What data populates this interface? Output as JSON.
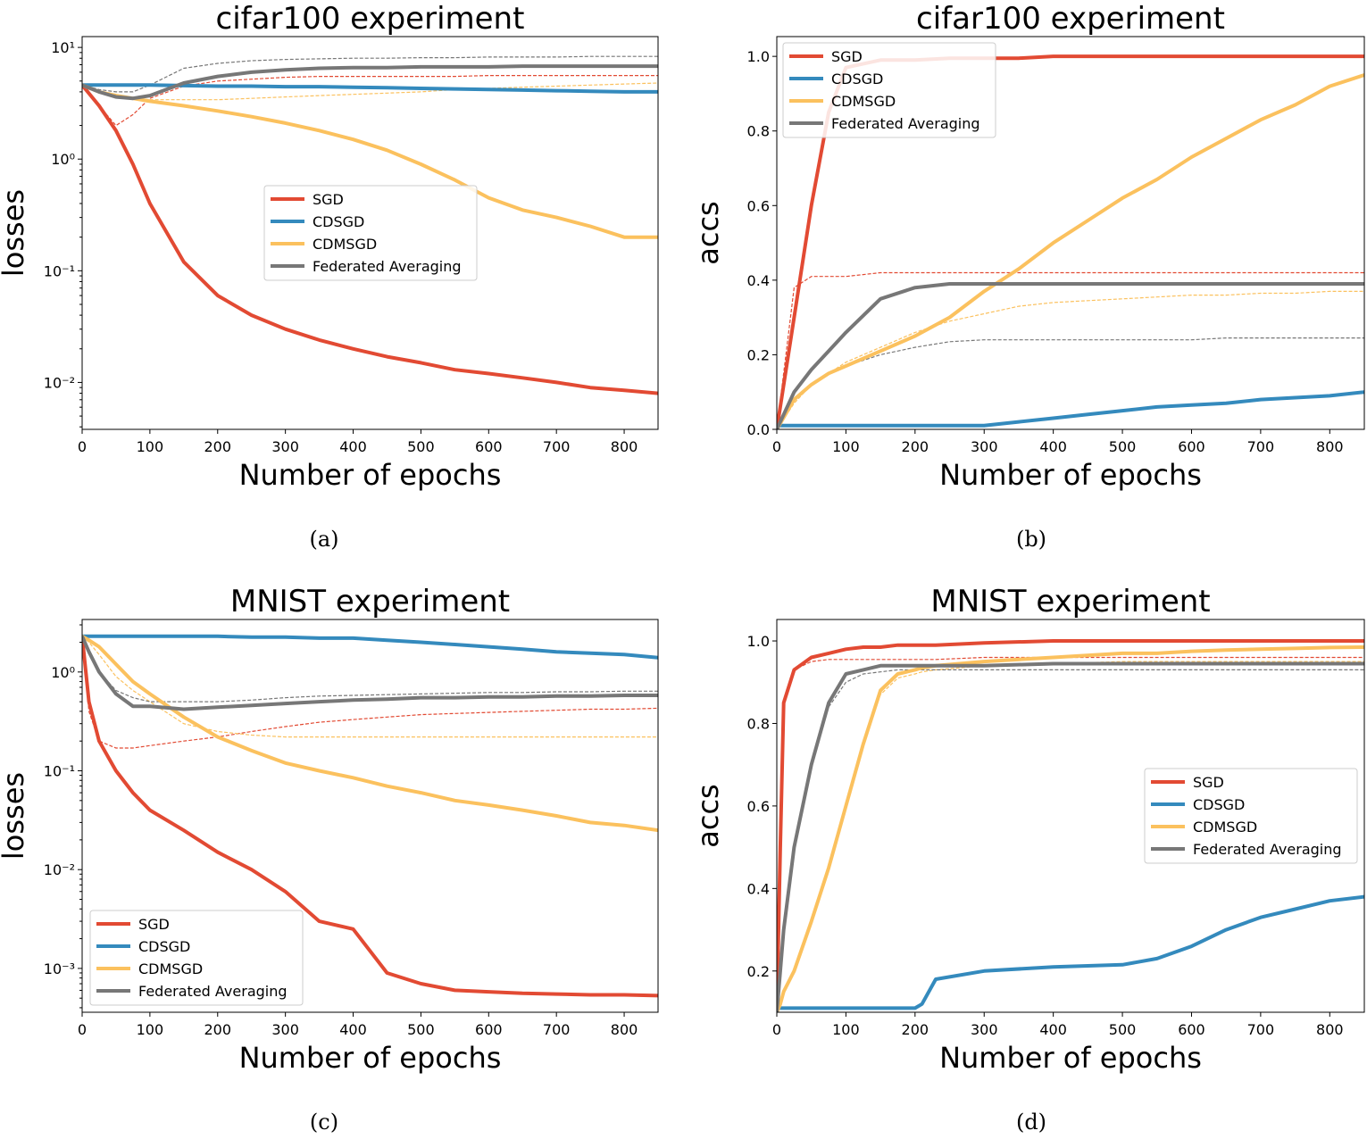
{
  "colors": {
    "SGD": "#e24a33",
    "CDSGD": "#348abd",
    "CDMSGD": "#fbc15e",
    "Federated Averaging": "#777777"
  },
  "chart_data": [
    {
      "id": "a",
      "caption": "(a)",
      "type": "line",
      "title": "cifar100 experiment",
      "xlabel": "Number of epochs",
      "ylabel": "losses",
      "yscale": "log",
      "xlim": [
        0,
        850
      ],
      "ylim": [
        0.0038,
        12.5
      ],
      "legend": "center",
      "xticks": [
        0,
        100,
        200,
        300,
        400,
        500,
        600,
        700,
        800
      ],
      "yticks": [
        {
          "v": 10,
          "label": "10¹"
        },
        {
          "v": 1,
          "label": "10⁰"
        },
        {
          "v": 0.1,
          "label": "10⁻¹"
        },
        {
          "v": 0.01,
          "label": "10⁻²"
        }
      ],
      "x": [
        0,
        25,
        50,
        75,
        100,
        150,
        200,
        250,
        300,
        350,
        400,
        450,
        500,
        550,
        600,
        650,
        700,
        750,
        800,
        850
      ],
      "series": [
        {
          "name": "SGD",
          "values": [
            4.6,
            3.0,
            1.8,
            0.9,
            0.4,
            0.12,
            0.06,
            0.04,
            0.03,
            0.024,
            0.02,
            0.017,
            0.015,
            0.013,
            0.012,
            0.011,
            0.01,
            0.009,
            0.0085,
            0.008
          ]
        },
        {
          "name": "CDSGD",
          "values": [
            4.6,
            4.6,
            4.6,
            4.6,
            4.6,
            4.55,
            4.5,
            4.5,
            4.45,
            4.45,
            4.4,
            4.35,
            4.3,
            4.25,
            4.2,
            4.15,
            4.1,
            4.05,
            4.0,
            4.0
          ]
        },
        {
          "name": "CDMSGD",
          "values": [
            4.6,
            4.0,
            3.7,
            3.5,
            3.3,
            3.0,
            2.7,
            2.4,
            2.1,
            1.8,
            1.5,
            1.2,
            0.9,
            0.65,
            0.45,
            0.35,
            0.3,
            0.25,
            0.2,
            0.2
          ]
        },
        {
          "name": "Federated Averaging",
          "values": [
            4.6,
            4.0,
            3.6,
            3.5,
            3.7,
            4.8,
            5.5,
            6.0,
            6.3,
            6.5,
            6.6,
            6.6,
            6.7,
            6.7,
            6.7,
            6.8,
            6.8,
            6.8,
            6.8,
            6.8
          ]
        }
      ],
      "dashed": [
        {
          "name": "SGD",
          "values": [
            4.6,
            3.0,
            2.0,
            2.5,
            3.5,
            4.5,
            5.0,
            5.2,
            5.4,
            5.5,
            5.5,
            5.5,
            5.5,
            5.5,
            5.6,
            5.6,
            5.6,
            5.6,
            5.6,
            5.6
          ]
        },
        {
          "name": "CDMSGD",
          "values": [
            4.6,
            4.0,
            3.6,
            3.5,
            3.4,
            3.4,
            3.4,
            3.5,
            3.6,
            3.7,
            3.8,
            3.9,
            4.0,
            4.2,
            4.3,
            4.4,
            4.5,
            4.6,
            4.7,
            4.8
          ]
        },
        {
          "name": "Federated Averaging",
          "values": [
            4.6,
            4.2,
            4.0,
            4.0,
            4.6,
            6.5,
            7.2,
            7.6,
            7.8,
            7.9,
            8.0,
            8.0,
            8.1,
            8.1,
            8.2,
            8.2,
            8.2,
            8.3,
            8.3,
            8.3
          ]
        }
      ]
    },
    {
      "id": "b",
      "caption": "(b)",
      "type": "line",
      "title": "cifar100 experiment",
      "xlabel": "Number of epochs",
      "ylabel": "accs",
      "yscale": "linear",
      "xlim": [
        0,
        850
      ],
      "ylim": [
        0,
        1.053
      ],
      "legend": "upper-left",
      "xticks": [
        0,
        100,
        200,
        300,
        400,
        500,
        600,
        700,
        800
      ],
      "yticks": [
        {
          "v": 0,
          "label": "0.0"
        },
        {
          "v": 0.2,
          "label": "0.2"
        },
        {
          "v": 0.4,
          "label": "0.4"
        },
        {
          "v": 0.6,
          "label": "0.6"
        },
        {
          "v": 0.8,
          "label": "0.8"
        },
        {
          "v": 1,
          "label": "1.0"
        }
      ],
      "x": [
        0,
        25,
        50,
        75,
        100,
        150,
        200,
        250,
        300,
        350,
        400,
        450,
        500,
        550,
        600,
        650,
        700,
        750,
        800,
        850
      ],
      "series": [
        {
          "name": "SGD",
          "values": [
            0,
            0.3,
            0.6,
            0.85,
            0.97,
            0.99,
            0.99,
            0.995,
            0.995,
            0.995,
            1,
            1,
            1,
            1,
            1,
            1,
            1,
            1,
            1,
            1
          ]
        },
        {
          "name": "CDSGD",
          "values": [
            0.01,
            0.01,
            0.01,
            0.01,
            0.01,
            0.01,
            0.01,
            0.01,
            0.01,
            0.02,
            0.03,
            0.04,
            0.05,
            0.06,
            0.065,
            0.07,
            0.08,
            0.085,
            0.09,
            0.1
          ]
        },
        {
          "name": "CDMSGD",
          "values": [
            0,
            0.08,
            0.12,
            0.15,
            0.17,
            0.21,
            0.25,
            0.3,
            0.37,
            0.43,
            0.5,
            0.56,
            0.62,
            0.67,
            0.73,
            0.78,
            0.83,
            0.87,
            0.92,
            0.95
          ]
        },
        {
          "name": "Federated Averaging",
          "values": [
            0,
            0.1,
            0.16,
            0.21,
            0.26,
            0.35,
            0.38,
            0.39,
            0.39,
            0.39,
            0.39,
            0.39,
            0.39,
            0.39,
            0.39,
            0.39,
            0.39,
            0.39,
            0.39,
            0.39
          ]
        }
      ],
      "dashed": [
        {
          "name": "SGD",
          "values": [
            0,
            0.38,
            0.41,
            0.41,
            0.41,
            0.42,
            0.42,
            0.42,
            0.42,
            0.42,
            0.42,
            0.42,
            0.42,
            0.42,
            0.42,
            0.42,
            0.42,
            0.42,
            0.42,
            0.42
          ]
        },
        {
          "name": "CDMSGD",
          "values": [
            0,
            0.07,
            0.12,
            0.15,
            0.18,
            0.22,
            0.26,
            0.29,
            0.31,
            0.33,
            0.34,
            0.345,
            0.35,
            0.355,
            0.36,
            0.36,
            0.365,
            0.365,
            0.37,
            0.37
          ]
        },
        {
          "name": "Federated Averaging",
          "values": [
            0,
            0.08,
            0.12,
            0.15,
            0.17,
            0.2,
            0.22,
            0.235,
            0.24,
            0.24,
            0.24,
            0.24,
            0.24,
            0.24,
            0.24,
            0.245,
            0.245,
            0.245,
            0.245,
            0.245
          ]
        }
      ]
    },
    {
      "id": "c",
      "caption": "(c)",
      "type": "line",
      "title": "MNIST experiment",
      "xlabel": "Number of epochs",
      "ylabel": "losses",
      "yscale": "log",
      "xlim": [
        0,
        850
      ],
      "ylim": [
        0.00036,
        3.4
      ],
      "legend": "lower-left",
      "xticks": [
        0,
        100,
        200,
        300,
        400,
        500,
        600,
        700,
        800
      ],
      "yticks": [
        {
          "v": 1,
          "label": "10⁰"
        },
        {
          "v": 0.1,
          "label": "10⁻¹"
        },
        {
          "v": 0.01,
          "label": "10⁻²"
        },
        {
          "v": 0.001,
          "label": "10⁻³"
        }
      ],
      "x": [
        0,
        10,
        25,
        50,
        75,
        100,
        150,
        200,
        250,
        300,
        350,
        400,
        450,
        500,
        550,
        600,
        650,
        700,
        750,
        800,
        850
      ],
      "series": [
        {
          "name": "SGD",
          "values": [
            2.3,
            0.5,
            0.2,
            0.1,
            0.06,
            0.04,
            0.025,
            0.015,
            0.01,
            0.006,
            0.003,
            0.0025,
            0.0009,
            0.0007,
            0.0006,
            0.00058,
            0.00056,
            0.00055,
            0.00054,
            0.00054,
            0.00053
          ]
        },
        {
          "name": "CDSGD",
          "values": [
            2.3,
            2.3,
            2.3,
            2.3,
            2.3,
            2.3,
            2.3,
            2.3,
            2.25,
            2.25,
            2.2,
            2.2,
            2.1,
            2.0,
            1.9,
            1.8,
            1.7,
            1.6,
            1.55,
            1.5,
            1.4
          ]
        },
        {
          "name": "CDMSGD",
          "values": [
            2.3,
            2.1,
            1.8,
            1.2,
            0.8,
            0.6,
            0.35,
            0.22,
            0.16,
            0.12,
            0.1,
            0.085,
            0.07,
            0.06,
            0.05,
            0.045,
            0.04,
            0.035,
            0.03,
            0.028,
            0.025
          ]
        },
        {
          "name": "Federated Averaging",
          "values": [
            2.3,
            1.6,
            1.0,
            0.6,
            0.45,
            0.45,
            0.42,
            0.44,
            0.46,
            0.48,
            0.5,
            0.52,
            0.53,
            0.55,
            0.55,
            0.56,
            0.56,
            0.57,
            0.57,
            0.58,
            0.58
          ]
        }
      ],
      "dashed": [
        {
          "name": "SGD",
          "values": [
            2.3,
            0.4,
            0.2,
            0.17,
            0.17,
            0.18,
            0.2,
            0.22,
            0.25,
            0.28,
            0.31,
            0.33,
            0.35,
            0.37,
            0.38,
            0.39,
            0.4,
            0.41,
            0.42,
            0.42,
            0.43
          ]
        },
        {
          "name": "CDMSGD",
          "values": [
            2.3,
            2.0,
            1.5,
            0.9,
            0.65,
            0.5,
            0.3,
            0.25,
            0.23,
            0.22,
            0.22,
            0.22,
            0.22,
            0.22,
            0.22,
            0.22,
            0.22,
            0.22,
            0.22,
            0.22,
            0.22
          ]
        },
        {
          "name": "Federated Averaging",
          "values": [
            2.3,
            1.5,
            1.0,
            0.65,
            0.55,
            0.5,
            0.5,
            0.5,
            0.52,
            0.55,
            0.57,
            0.58,
            0.59,
            0.6,
            0.61,
            0.62,
            0.62,
            0.63,
            0.63,
            0.64,
            0.64
          ]
        }
      ]
    },
    {
      "id": "d",
      "caption": "(d)",
      "type": "line",
      "title": "MNIST experiment",
      "xlabel": "Number of epochs",
      "ylabel": "accs",
      "yscale": "linear",
      "xlim": [
        0,
        850
      ],
      "ylim": [
        0.1,
        1.052
      ],
      "legend": "center-right",
      "xticks": [
        0,
        100,
        200,
        300,
        400,
        500,
        600,
        700,
        800
      ],
      "yticks": [
        {
          "v": 0.2,
          "label": "0.2"
        },
        {
          "v": 0.4,
          "label": "0.4"
        },
        {
          "v": 0.6,
          "label": "0.6"
        },
        {
          "v": 0.8,
          "label": "0.8"
        },
        {
          "v": 1,
          "label": "1.0"
        }
      ],
      "x": [
        0,
        5,
        10,
        25,
        50,
        75,
        100,
        125,
        150,
        175,
        200,
        210,
        230,
        300,
        400,
        500,
        550,
        600,
        650,
        700,
        750,
        800,
        850
      ],
      "series": [
        {
          "name": "SGD",
          "values": [
            0.1,
            0.5,
            0.85,
            0.93,
            0.96,
            0.97,
            0.98,
            0.985,
            0.985,
            0.99,
            0.99,
            0.99,
            0.99,
            0.995,
            1,
            1,
            1,
            1,
            1,
            1,
            1,
            1,
            1
          ]
        },
        {
          "name": "CDSGD",
          "values": [
            0.11,
            0.11,
            0.11,
            0.11,
            0.11,
            0.11,
            0.11,
            0.11,
            0.11,
            0.11,
            0.11,
            0.12,
            0.18,
            0.2,
            0.21,
            0.215,
            0.23,
            0.26,
            0.3,
            0.33,
            0.35,
            0.37,
            0.38
          ]
        },
        {
          "name": "CDMSGD",
          "values": [
            0.1,
            0.12,
            0.15,
            0.2,
            0.32,
            0.45,
            0.6,
            0.75,
            0.88,
            0.92,
            0.93,
            0.935,
            0.94,
            0.95,
            0.96,
            0.97,
            0.97,
            0.975,
            0.978,
            0.98,
            0.982,
            0.984,
            0.985
          ]
        },
        {
          "name": "Federated Averaging",
          "values": [
            0.1,
            0.2,
            0.3,
            0.5,
            0.7,
            0.85,
            0.92,
            0.93,
            0.94,
            0.94,
            0.94,
            0.94,
            0.94,
            0.94,
            0.945,
            0.945,
            0.945,
            0.945,
            0.945,
            0.945,
            0.945,
            0.945,
            0.945
          ]
        }
      ],
      "dashed": [
        {
          "name": "SGD",
          "values": [
            0.1,
            0.5,
            0.85,
            0.93,
            0.95,
            0.955,
            0.955,
            0.955,
            0.955,
            0.955,
            0.955,
            0.955,
            0.955,
            0.96,
            0.96,
            0.96,
            0.96,
            0.96,
            0.96,
            0.96,
            0.96,
            0.96,
            0.96
          ]
        },
        {
          "name": "CDMSGD",
          "values": [
            0.1,
            0.12,
            0.15,
            0.2,
            0.32,
            0.45,
            0.6,
            0.75,
            0.87,
            0.91,
            0.92,
            0.925,
            0.93,
            0.94,
            0.945,
            0.95,
            0.95,
            0.95,
            0.95,
            0.95,
            0.95,
            0.95,
            0.95
          ]
        },
        {
          "name": "Federated Averaging",
          "values": [
            0.1,
            0.2,
            0.3,
            0.5,
            0.7,
            0.84,
            0.9,
            0.92,
            0.925,
            0.93,
            0.93,
            0.93,
            0.93,
            0.93,
            0.93,
            0.93,
            0.93,
            0.93,
            0.93,
            0.93,
            0.93,
            0.93,
            0.93
          ]
        }
      ]
    }
  ],
  "legend_entries": [
    "SGD",
    "CDSGD",
    "CDMSGD",
    "Federated Averaging"
  ]
}
